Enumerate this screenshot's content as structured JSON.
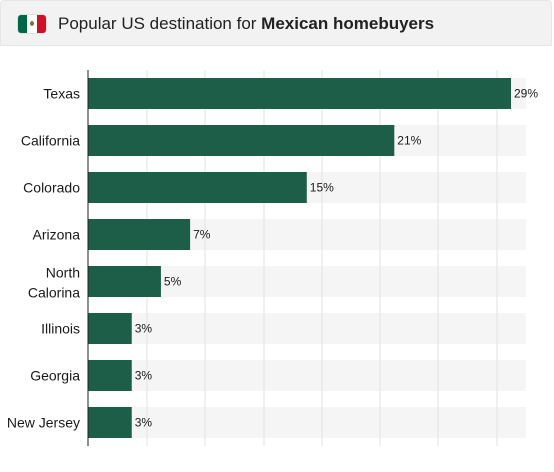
{
  "header": {
    "title_prefix": "Popular US destination for ",
    "title_bold": "Mexican homebuyers",
    "flag_icon": "mexico-flag-icon"
  },
  "chart_data": {
    "type": "bar",
    "orientation": "horizontal",
    "categories": [
      "Texas",
      "California",
      "Colorado",
      "Arizona",
      "North Calorina",
      "Illinois",
      "Georgia",
      "New Jersey"
    ],
    "values": [
      29,
      21,
      15,
      7,
      5,
      3,
      3,
      3
    ],
    "value_labels": [
      "29%",
      "21%",
      "15%",
      "7%",
      "5%",
      "3%",
      "3%",
      "3%"
    ],
    "xlim": [
      0,
      30
    ],
    "grid": true,
    "colors": {
      "bar": "#1d5e48",
      "track": "#f5f5f5",
      "grid": "#e2e2e2",
      "axis": "#222222"
    }
  }
}
